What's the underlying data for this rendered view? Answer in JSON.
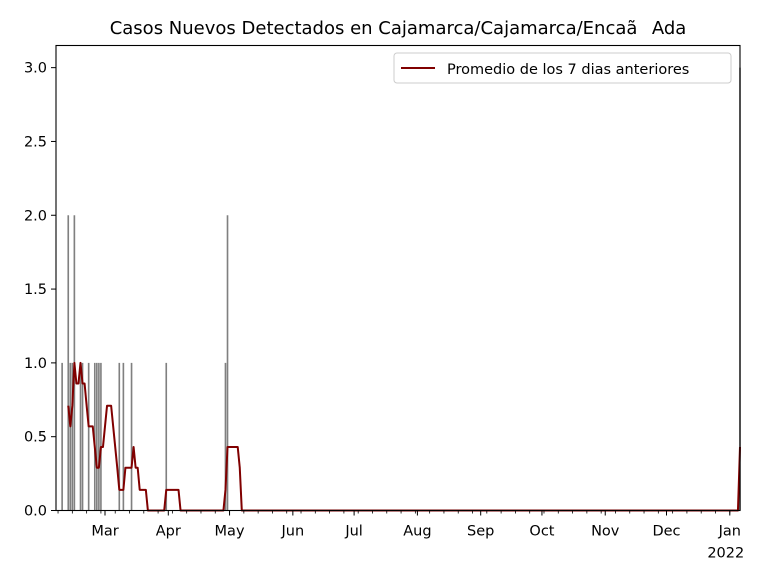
{
  "chart_data": {
    "type": "bar",
    "title": "Casos Nuevos Detectados en Cajamarca/Cajamarca/EncaãAda",
    "xlabel": "",
    "ylabel": "",
    "ylim": [
      0,
      3.15
    ],
    "grid": false,
    "legend_placement": "top-right",
    "yticks": [
      "0.0",
      "0.5",
      "1.0",
      "1.5",
      "2.0",
      "2.5",
      "3.0"
    ],
    "xticks": [
      {
        "date": "2021-03-01",
        "label": "Mar"
      },
      {
        "date": "2021-04-01",
        "label": "Apr"
      },
      {
        "date": "2021-05-01",
        "label": "May"
      },
      {
        "date": "2021-06-01",
        "label": "Jun"
      },
      {
        "date": "2021-07-01",
        "label": "Jul"
      },
      {
        "date": "2021-08-01",
        "label": "Aug"
      },
      {
        "date": "2021-09-01",
        "label": "Sep"
      },
      {
        "date": "2021-10-01",
        "label": "Oct"
      },
      {
        "date": "2021-11-01",
        "label": "Nov"
      },
      {
        "date": "2021-12-01",
        "label": "Dec"
      },
      {
        "date": "2022-01-01",
        "label": "Jan",
        "sublabel": "2022"
      }
    ],
    "xlim": [
      "2021-02-05",
      "2022-01-06"
    ],
    "series": [
      {
        "kind": "bar",
        "color": "#808080",
        "points": [
          [
            "2021-02-08",
            1
          ],
          [
            "2021-02-11",
            2
          ],
          [
            "2021-02-12",
            1
          ],
          [
            "2021-02-13",
            1
          ],
          [
            "2021-02-14",
            2
          ],
          [
            "2021-02-17",
            1
          ],
          [
            "2021-02-18",
            1
          ],
          [
            "2021-02-21",
            1
          ],
          [
            "2021-02-24",
            1
          ],
          [
            "2021-02-25",
            1
          ],
          [
            "2021-02-26",
            1
          ],
          [
            "2021-02-27",
            1
          ],
          [
            "2021-03-08",
            1
          ],
          [
            "2021-03-10",
            1
          ],
          [
            "2021-03-14",
            1
          ],
          [
            "2021-03-31",
            1
          ],
          [
            "2021-04-29",
            1
          ],
          [
            "2021-04-30",
            2
          ],
          [
            "2022-01-06",
            3
          ]
        ]
      },
      {
        "kind": "line",
        "name": "Promedio de los 7 dias anteriores",
        "color": "#800000",
        "points": [
          [
            "2021-02-11",
            0.71
          ],
          [
            "2021-02-12",
            0.57
          ],
          [
            "2021-02-13",
            0.71
          ],
          [
            "2021-02-14",
            1.0
          ],
          [
            "2021-02-15",
            0.86
          ],
          [
            "2021-02-16",
            0.86
          ],
          [
            "2021-02-17",
            1.0
          ],
          [
            "2021-02-18",
            0.86
          ],
          [
            "2021-02-19",
            0.86
          ],
          [
            "2021-02-20",
            0.71
          ],
          [
            "2021-02-21",
            0.57
          ],
          [
            "2021-02-22",
            0.57
          ],
          [
            "2021-02-23",
            0.57
          ],
          [
            "2021-02-24",
            0.43
          ],
          [
            "2021-02-25",
            0.29
          ],
          [
            "2021-02-26",
            0.29
          ],
          [
            "2021-02-27",
            0.43
          ],
          [
            "2021-02-28",
            0.43
          ],
          [
            "2021-03-01",
            0.57
          ],
          [
            "2021-03-02",
            0.71
          ],
          [
            "2021-03-03",
            0.71
          ],
          [
            "2021-03-04",
            0.71
          ],
          [
            "2021-03-05",
            0.57
          ],
          [
            "2021-03-06",
            0.43
          ],
          [
            "2021-03-07",
            0.29
          ],
          [
            "2021-03-08",
            0.14
          ],
          [
            "2021-03-09",
            0.14
          ],
          [
            "2021-03-10",
            0.14
          ],
          [
            "2021-03-11",
            0.29
          ],
          [
            "2021-03-12",
            0.29
          ],
          [
            "2021-03-13",
            0.29
          ],
          [
            "2021-03-14",
            0.29
          ],
          [
            "2021-03-15",
            0.43
          ],
          [
            "2021-03-16",
            0.29
          ],
          [
            "2021-03-17",
            0.29
          ],
          [
            "2021-03-18",
            0.14
          ],
          [
            "2021-03-19",
            0.14
          ],
          [
            "2021-03-20",
            0.14
          ],
          [
            "2021-03-21",
            0.14
          ],
          [
            "2021-03-22",
            0.0
          ],
          [
            "2021-03-30",
            0.0
          ],
          [
            "2021-03-31",
            0.14
          ],
          [
            "2021-04-06",
            0.14
          ],
          [
            "2021-04-07",
            0.0
          ],
          [
            "2021-04-28",
            0.0
          ],
          [
            "2021-04-29",
            0.14
          ],
          [
            "2021-04-30",
            0.43
          ],
          [
            "2021-05-05",
            0.43
          ],
          [
            "2021-05-06",
            0.29
          ],
          [
            "2021-05-07",
            0.0
          ],
          [
            "2022-01-05",
            0.0
          ],
          [
            "2022-01-06",
            0.43
          ]
        ]
      }
    ]
  }
}
